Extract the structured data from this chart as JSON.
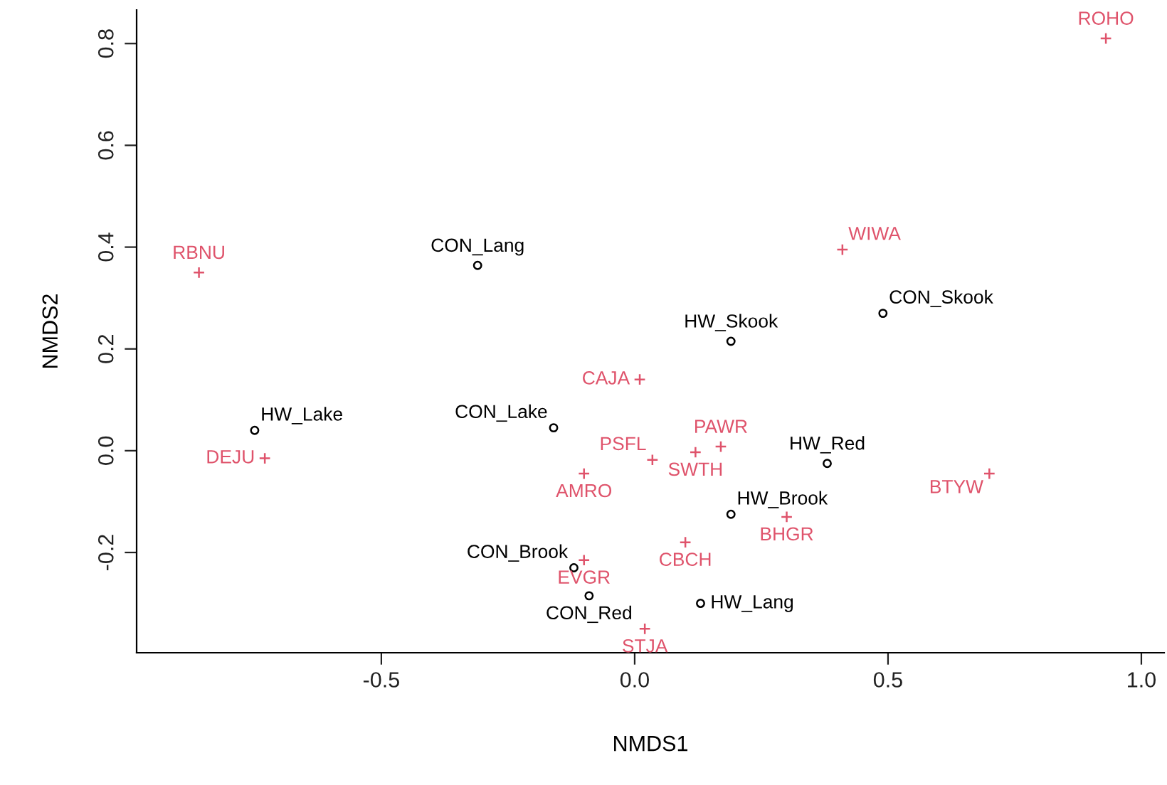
{
  "chart_data": {
    "type": "scatter",
    "xlabel": "NMDS1",
    "ylabel": "NMDS2",
    "xlim": [
      -0.983,
      1.045
    ],
    "ylim": [
      -0.397,
      0.866
    ],
    "xticks": [
      -0.5,
      {
        "value": 0,
        "label": "0.0"
      },
      0.5,
      {
        "value": 1,
        "label": "1.0"
      }
    ],
    "yticks": [
      -0.2,
      {
        "value": 0,
        "label": "0.0"
      },
      0.2,
      0.4,
      0.6,
      0.8
    ],
    "grid": false,
    "series": [
      {
        "color": "#000000",
        "marker": "circle",
        "x": [
          -0.31,
          0.19,
          0.49,
          -0.75,
          -0.16,
          -0.12,
          -0.09,
          0.38,
          0.19,
          0.13
        ],
        "values": [
          0.364,
          0.215,
          0.27,
          0.04,
          0.045,
          -0.23,
          -0.285,
          -0.025,
          -0.125,
          -0.3
        ],
        "value_labels": [
          "CON_Lang",
          "HW_Skook",
          "CON_Skook",
          "HW_Lake",
          "CON_Lake",
          "CON_Brook",
          "CON_Red",
          "HW_Red",
          "HW_Brook",
          "HW_Lang"
        ]
      },
      {
        "color": "#df536b",
        "marker": "cross",
        "x": [
          -0.86,
          0.01,
          0.93,
          0.41,
          -0.73,
          0.035,
          -0.1,
          -0.1,
          0.02,
          0.17,
          0.12,
          0.7,
          0.3,
          0.1
        ],
        "values": [
          0.35,
          0.14,
          0.81,
          0.395,
          -0.015,
          -0.018,
          -0.045,
          -0.215,
          -0.35,
          0.008,
          -0.003,
          -0.045,
          -0.13,
          -0.18
        ],
        "value_labels": [
          "RBNU",
          "CAJA",
          "ROHO",
          "WIWA",
          "DEJU",
          "PSFL",
          "AMRO",
          "EVGR",
          "STJA",
          "PAWR",
          "SWTH",
          "BTYW",
          "BHGR",
          "CBCH"
        ]
      }
    ]
  }
}
